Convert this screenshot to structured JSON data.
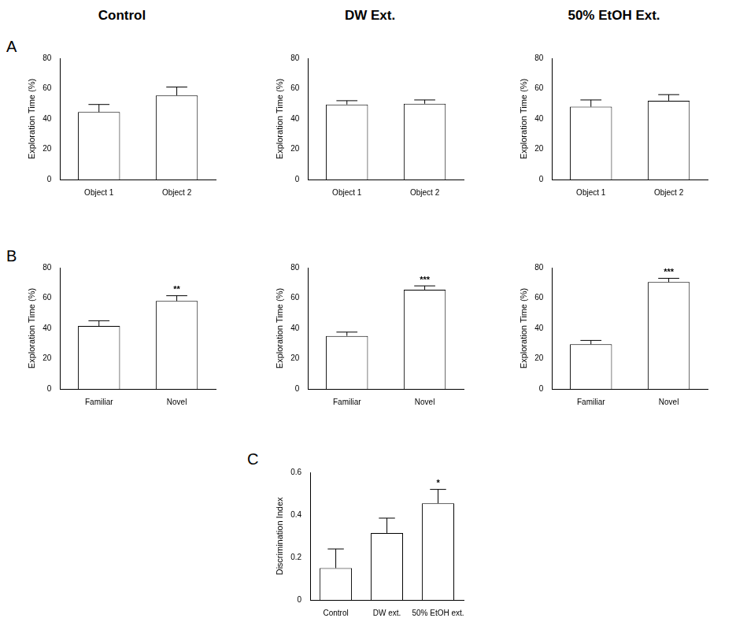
{
  "chart_data": [
    {
      "type": "bar",
      "title": "Control",
      "panel": "A",
      "y_label": "Exploration Time (%)",
      "categories": [
        "Object 1",
        "Object 2"
      ],
      "values": [
        44.5,
        55.5
      ],
      "errors": [
        5,
        5.5
      ],
      "color": "#ffffff",
      "ylim": [
        0,
        80
      ],
      "yticks": [
        0,
        20,
        40,
        60,
        80
      ],
      "grid": false
    },
    {
      "type": "bar",
      "title": "DW Ext.",
      "y_label": "Exploration Time (%)",
      "categories": [
        "Object 1",
        "Object 2"
      ],
      "values": [
        49.5,
        50
      ],
      "errors": [
        2.5,
        2.5
      ],
      "color": "#ffffff",
      "ylim": [
        0,
        80
      ],
      "yticks": [
        0,
        20,
        40,
        60,
        80
      ],
      "grid": false
    },
    {
      "type": "bar",
      "title": "50% EtOH Ext.",
      "y_label": "Exploration Time (%)",
      "categories": [
        "Object 1",
        "Object 2"
      ],
      "values": [
        48,
        52
      ],
      "errors": [
        4.5,
        4
      ],
      "color": "#ffffff",
      "ylim": [
        0,
        80
      ],
      "yticks": [
        0,
        20,
        40,
        60,
        80
      ],
      "grid": false
    },
    {
      "type": "bar",
      "panel": "B",
      "y_label": "Exploration Time (%)",
      "categories": [
        "Familiar",
        "Novel"
      ],
      "values": [
        41.5,
        58
      ],
      "errors": [
        3.5,
        3.5
      ],
      "significance": [
        null,
        "**"
      ],
      "color": "#ffffff",
      "ylim": [
        0,
        80
      ],
      "yticks": [
        0,
        20,
        40,
        60,
        80
      ],
      "grid": false
    },
    {
      "type": "bar",
      "y_label": "Exploration Time (%)",
      "categories": [
        "Familiar",
        "Novel"
      ],
      "values": [
        35,
        65.5
      ],
      "errors": [
        2.5,
        2.5
      ],
      "significance": [
        null,
        "***"
      ],
      "color": "#ffffff",
      "ylim": [
        0,
        80
      ],
      "yticks": [
        0,
        20,
        40,
        60,
        80
      ],
      "grid": false
    },
    {
      "type": "bar",
      "y_label": "Exploration Time (%)",
      "categories": [
        "Familiar",
        "Novel"
      ],
      "values": [
        29.5,
        70.5
      ],
      "errors": [
        2.5,
        2.5
      ],
      "significance": [
        null,
        "***"
      ],
      "color": "#ffffff",
      "ylim": [
        0,
        80
      ],
      "yticks": [
        0,
        20,
        40,
        60,
        80
      ],
      "grid": false
    },
    {
      "type": "bar",
      "panel": "C",
      "y_label": "Discrimination Index",
      "categories": [
        "Control",
        "DW ext.",
        "50% EtOH ext."
      ],
      "values": [
        0.15,
        0.315,
        0.455
      ],
      "errors": [
        0.09,
        0.07,
        0.065
      ],
      "significance": [
        null,
        null,
        "*"
      ],
      "color": "#ffffff",
      "ylim": [
        0,
        0.6
      ],
      "yticks": [
        0,
        0.2,
        0.4,
        0.6
      ],
      "grid": false
    }
  ]
}
